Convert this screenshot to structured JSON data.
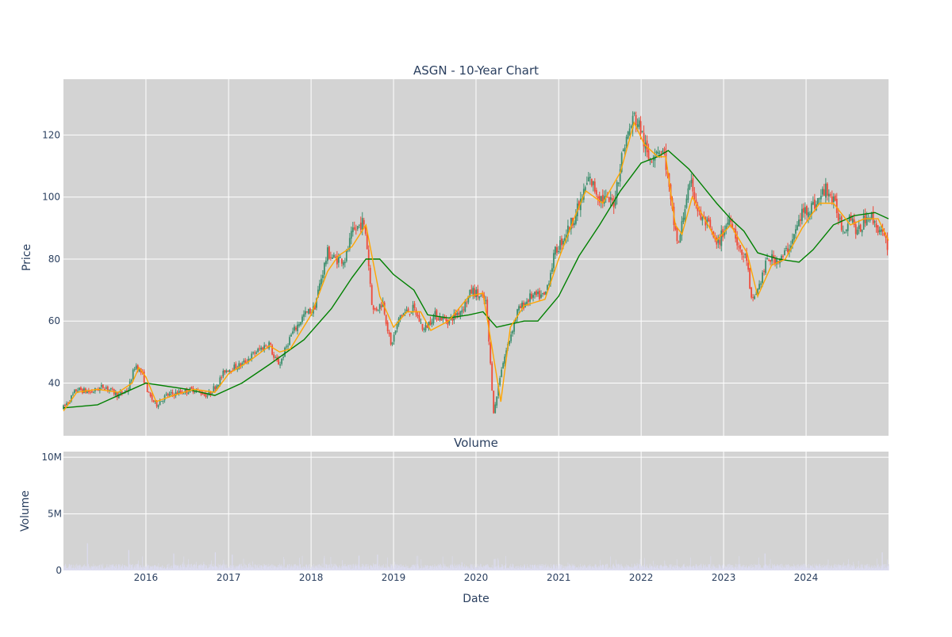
{
  "chart_data": [
    {
      "type": "candlestick",
      "title": "ASGN - 10-Year Chart",
      "ylabel": "Price",
      "ylim": [
        23,
        138
      ],
      "y_ticks": [
        40,
        60,
        80,
        100,
        120
      ],
      "x_ticks": [
        "2016",
        "2017",
        "2018",
        "2019",
        "2020",
        "2021",
        "2022",
        "2023",
        "2024"
      ],
      "x_range": [
        "2015-01-01",
        "2024-12-31"
      ],
      "grid": true,
      "colors": {
        "increasing": "#3d8f6e",
        "decreasing": "#ef4a3a",
        "ma_short": "#ffa500",
        "ma_long": "#008000",
        "background": "#d3d3d3"
      },
      "price_path": [
        [
          "2015-01-01",
          32
        ],
        [
          "2015-02-01",
          35
        ],
        [
          "2015-03-01",
          38
        ],
        [
          "2015-05-01",
          37
        ],
        [
          "2015-07-01",
          39
        ],
        [
          "2015-09-01",
          36
        ],
        [
          "2015-10-15",
          38
        ],
        [
          "2015-11-15",
          46
        ],
        [
          "2015-12-15",
          43
        ],
        [
          "2016-01-15",
          36
        ],
        [
          "2016-02-15",
          33
        ],
        [
          "2016-04-01",
          36
        ],
        [
          "2016-06-01",
          37
        ],
        [
          "2016-08-01",
          38
        ],
        [
          "2016-10-01",
          36
        ],
        [
          "2016-11-15",
          40
        ],
        [
          "2016-12-15",
          44
        ],
        [
          "2017-03-01",
          46
        ],
        [
          "2017-05-01",
          50
        ],
        [
          "2017-07-01",
          53
        ],
        [
          "2017-07-20",
          48
        ],
        [
          "2017-08-15",
          46
        ],
        [
          "2017-10-01",
          55
        ],
        [
          "2017-12-01",
          62
        ],
        [
          "2018-01-15",
          64
        ],
        [
          "2018-02-15",
          74
        ],
        [
          "2018-03-15",
          82
        ],
        [
          "2018-04-15",
          80
        ],
        [
          "2018-06-01",
          80
        ],
        [
          "2018-07-01",
          88
        ],
        [
          "2018-08-15",
          92
        ],
        [
          "2018-09-01",
          88
        ],
        [
          "2018-10-01",
          63
        ],
        [
          "2018-11-15",
          66
        ],
        [
          "2018-12-20",
          52
        ],
        [
          "2019-02-01",
          62
        ],
        [
          "2019-04-01",
          64
        ],
        [
          "2019-05-15",
          57
        ],
        [
          "2019-07-01",
          62
        ],
        [
          "2019-09-01",
          60
        ],
        [
          "2019-11-01",
          64
        ],
        [
          "2019-12-15",
          70
        ],
        [
          "2020-02-15",
          66
        ],
        [
          "2020-03-20",
          30
        ],
        [
          "2020-04-20",
          44
        ],
        [
          "2020-05-20",
          52
        ],
        [
          "2020-07-01",
          63
        ],
        [
          "2020-09-01",
          68
        ],
        [
          "2020-11-01",
          68
        ],
        [
          "2020-12-15",
          82
        ],
        [
          "2021-02-15",
          90
        ],
        [
          "2021-04-01",
          97
        ],
        [
          "2021-05-15",
          106
        ],
        [
          "2021-07-01",
          100
        ],
        [
          "2021-09-01",
          98
        ],
        [
          "2021-10-15",
          116
        ],
        [
          "2021-12-01",
          126
        ],
        [
          "2021-12-30",
          122
        ],
        [
          "2022-02-01",
          112
        ],
        [
          "2022-03-15",
          116
        ],
        [
          "2022-04-15",
          114
        ],
        [
          "2022-05-15",
          96
        ],
        [
          "2022-06-15",
          84
        ],
        [
          "2022-07-20",
          100
        ],
        [
          "2022-08-15",
          104
        ],
        [
          "2022-09-15",
          94
        ],
        [
          "2022-11-01",
          90
        ],
        [
          "2022-12-01",
          84
        ],
        [
          "2023-02-01",
          94
        ],
        [
          "2023-03-15",
          82
        ],
        [
          "2023-04-15",
          80
        ],
        [
          "2023-05-01",
          66
        ],
        [
          "2023-06-01",
          70
        ],
        [
          "2023-07-15",
          80
        ],
        [
          "2023-09-15",
          80
        ],
        [
          "2023-11-01",
          86
        ],
        [
          "2023-12-15",
          95
        ],
        [
          "2024-02-15",
          98
        ],
        [
          "2024-04-01",
          103
        ],
        [
          "2024-05-15",
          96
        ],
        [
          "2024-06-15",
          89
        ],
        [
          "2024-07-15",
          95
        ],
        [
          "2024-08-15",
          88
        ],
        [
          "2024-10-01",
          95
        ],
        [
          "2024-11-15",
          90
        ],
        [
          "2024-12-31",
          84
        ]
      ],
      "ma_short": [
        [
          "2015-01-01",
          31
        ],
        [
          "2015-03-01",
          37
        ],
        [
          "2015-06-01",
          38
        ],
        [
          "2015-09-01",
          37
        ],
        [
          "2015-11-01",
          40
        ],
        [
          "2015-12-01",
          45
        ],
        [
          "2016-01-01",
          42
        ],
        [
          "2016-02-15",
          34
        ],
        [
          "2016-05-01",
          36
        ],
        [
          "2016-08-01",
          38
        ],
        [
          "2016-11-01",
          37
        ],
        [
          "2017-01-01",
          43
        ],
        [
          "2017-04-01",
          47
        ],
        [
          "2017-07-01",
          52
        ],
        [
          "2017-08-15",
          50
        ],
        [
          "2017-10-01",
          51
        ],
        [
          "2018-01-01",
          62
        ],
        [
          "2018-03-15",
          76
        ],
        [
          "2018-05-01",
          81
        ],
        [
          "2018-07-01",
          84
        ],
        [
          "2018-09-01",
          91
        ],
        [
          "2018-11-01",
          68
        ],
        [
          "2019-01-01",
          58
        ],
        [
          "2019-03-01",
          63
        ],
        [
          "2019-05-01",
          63
        ],
        [
          "2019-06-15",
          57
        ],
        [
          "2019-09-01",
          60
        ],
        [
          "2019-12-01",
          68
        ],
        [
          "2020-02-01",
          69
        ],
        [
          "2020-03-15",
          50
        ],
        [
          "2020-04-20",
          34
        ],
        [
          "2020-06-01",
          58
        ],
        [
          "2020-08-01",
          65
        ],
        [
          "2020-11-01",
          67
        ],
        [
          "2021-01-01",
          80
        ],
        [
          "2021-03-15",
          94
        ],
        [
          "2021-05-01",
          102
        ],
        [
          "2021-07-15",
          98
        ],
        [
          "2021-10-01",
          108
        ],
        [
          "2021-12-01",
          124
        ],
        [
          "2022-01-15",
          117
        ],
        [
          "2022-03-15",
          113
        ],
        [
          "2022-04-20",
          113
        ],
        [
          "2022-06-01",
          91
        ],
        [
          "2022-07-01",
          88
        ],
        [
          "2022-08-15",
          100
        ],
        [
          "2022-10-01",
          94
        ],
        [
          "2022-12-01",
          86
        ],
        [
          "2023-02-01",
          91
        ],
        [
          "2023-04-15",
          82
        ],
        [
          "2023-06-01",
          68
        ],
        [
          "2023-08-01",
          78
        ],
        [
          "2023-10-01",
          80
        ],
        [
          "2023-12-15",
          90
        ],
        [
          "2024-03-01",
          98
        ],
        [
          "2024-05-01",
          98
        ],
        [
          "2024-07-15",
          91
        ],
        [
          "2024-09-15",
          93
        ],
        [
          "2024-11-15",
          93
        ],
        [
          "2024-12-31",
          86
        ]
      ],
      "ma_long": [
        [
          "2015-01-01",
          32
        ],
        [
          "2015-06-01",
          33
        ],
        [
          "2015-10-01",
          37
        ],
        [
          "2016-01-01",
          40
        ],
        [
          "2016-07-01",
          38
        ],
        [
          "2016-11-01",
          36
        ],
        [
          "2017-03-01",
          40
        ],
        [
          "2017-07-01",
          46
        ],
        [
          "2017-12-01",
          54
        ],
        [
          "2018-04-01",
          64
        ],
        [
          "2018-07-01",
          74
        ],
        [
          "2018-09-01",
          80
        ],
        [
          "2018-11-01",
          80
        ],
        [
          "2019-01-01",
          75
        ],
        [
          "2019-04-01",
          70
        ],
        [
          "2019-06-01",
          62
        ],
        [
          "2019-09-01",
          61
        ],
        [
          "2019-12-01",
          62
        ],
        [
          "2020-02-01",
          63
        ],
        [
          "2020-04-01",
          58
        ],
        [
          "2020-06-01",
          59
        ],
        [
          "2020-08-01",
          60
        ],
        [
          "2020-10-01",
          60
        ],
        [
          "2021-01-01",
          68
        ],
        [
          "2021-04-01",
          81
        ],
        [
          "2021-07-01",
          91
        ],
        [
          "2021-10-01",
          102
        ],
        [
          "2022-01-01",
          111
        ],
        [
          "2022-03-15",
          113
        ],
        [
          "2022-05-01",
          115
        ],
        [
          "2022-08-01",
          109
        ],
        [
          "2022-12-01",
          98
        ],
        [
          "2023-02-01",
          93
        ],
        [
          "2023-04-01",
          89
        ],
        [
          "2023-06-01",
          82
        ],
        [
          "2023-09-01",
          80
        ],
        [
          "2023-12-01",
          79
        ],
        [
          "2024-02-01",
          83
        ],
        [
          "2024-05-01",
          91
        ],
        [
          "2024-08-01",
          94
        ],
        [
          "2024-11-01",
          95
        ],
        [
          "2024-12-31",
          93
        ]
      ]
    },
    {
      "type": "bar",
      "title": "Volume",
      "ylabel": "Volume",
      "xlabel": "Date",
      "ylim": [
        0,
        10500000
      ],
      "y_ticks": [
        0,
        5000000,
        10000000
      ],
      "y_tick_labels": [
        "0",
        "5M",
        "10M"
      ],
      "x_ticks": [
        "2016",
        "2017",
        "2018",
        "2019",
        "2020",
        "2021",
        "2022",
        "2023",
        "2024"
      ],
      "baseline": 350000,
      "volume_spikes": [
        [
          "2015-04-15",
          2400000
        ],
        [
          "2015-10-15",
          1800000
        ],
        [
          "2016-05-01",
          1500000
        ],
        [
          "2016-11-01",
          1600000
        ],
        [
          "2017-01-15",
          1400000
        ],
        [
          "2018-07-30",
          1300000
        ],
        [
          "2018-10-20",
          1400000
        ],
        [
          "2020-03-20",
          1000000
        ],
        [
          "2023-07-01",
          1500000
        ],
        [
          "2024-12-01",
          1600000
        ]
      ],
      "colors": {
        "bars": "#dcdcf0",
        "background": "#d3d3d3"
      }
    }
  ]
}
